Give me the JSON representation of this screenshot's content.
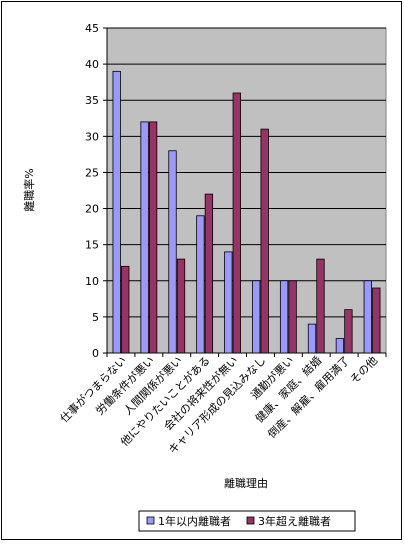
{
  "chart_data": {
    "type": "bar",
    "title": "",
    "xlabel": "離職理由",
    "ylabel": "離職率%",
    "ylim": [
      0,
      45
    ],
    "ytick_step": 5,
    "grid": true,
    "legend_position": "bottom",
    "categories": [
      "仕事がつまらない",
      "労働条件が悪い",
      "人間関係が悪い",
      "他にやりたいことがある",
      "会社の将来性が無い",
      "キャリア形成の見込みなし",
      "通勤が悪い",
      "健康、家庭、結婚",
      "倒産、解雇、雇用満了",
      "その他"
    ],
    "series": [
      {
        "name": "1年以内離職者",
        "values": [
          39,
          32,
          28,
          19,
          14,
          10,
          10,
          4,
          2,
          10
        ],
        "color": "#9999ff"
      },
      {
        "name": "3年超え離職者",
        "values": [
          12,
          32,
          13,
          22,
          36,
          31,
          10,
          13,
          6,
          9
        ],
        "color": "#993366"
      }
    ],
    "plot_background": "#c0c0c0"
  }
}
